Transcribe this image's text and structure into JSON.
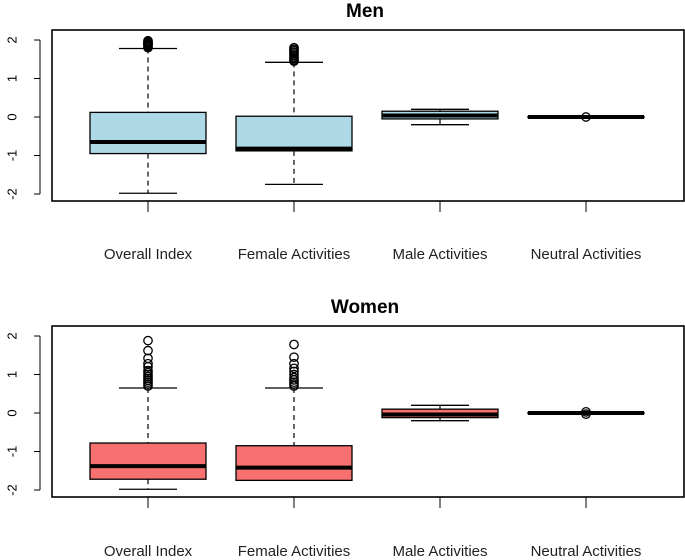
{
  "chart_data": [
    {
      "type": "boxplot",
      "title": "Men",
      "categories": [
        "Overall Index",
        "Female Activities",
        "Male Activities",
        "Neutral Activities"
      ],
      "y_ticks": [
        -2,
        -1,
        0,
        1,
        2
      ],
      "ylim": [
        -2.15,
        2.15
      ],
      "grid": false,
      "box_color": "#add8e6",
      "boxes": [
        {
          "whisker_low": -1.98,
          "q1": -0.95,
          "median": -0.65,
          "q3": 0.12,
          "whisker_high": 1.78,
          "outliers": [
            1.8,
            1.83,
            1.86,
            1.88,
            1.9,
            1.92,
            1.94,
            1.96,
            1.98
          ]
        },
        {
          "whisker_low": -1.75,
          "q1": -0.88,
          "median": -0.82,
          "q3": 0.02,
          "whisker_high": 1.42,
          "outliers": [
            1.45,
            1.48,
            1.52,
            1.56,
            1.6,
            1.64,
            1.68,
            1.72,
            1.76,
            1.8
          ]
        },
        {
          "whisker_low": -0.2,
          "q1": -0.05,
          "median": 0.04,
          "q3": 0.15,
          "whisker_high": 0.2,
          "outliers": []
        },
        {
          "whisker_low": -0.01,
          "q1": -0.01,
          "median": 0.0,
          "q3": 0.01,
          "whisker_high": 0.01,
          "outliers": [
            0.0
          ]
        }
      ]
    },
    {
      "type": "boxplot",
      "title": "Women",
      "categories": [
        "Overall Index",
        "Female Activities",
        "Male Activities",
        "Neutral Activities"
      ],
      "y_ticks": [
        -2,
        -1,
        0,
        1,
        2
      ],
      "ylim": [
        -2.15,
        2.15
      ],
      "grid": false,
      "box_color": "#f87171",
      "boxes": [
        {
          "whisker_low": -1.98,
          "q1": -1.72,
          "median": -1.38,
          "q3": -0.78,
          "whisker_high": 0.65,
          "outliers": [
            0.7,
            0.75,
            0.8,
            0.85,
            0.9,
            0.95,
            1.0,
            1.05,
            1.1,
            1.2,
            1.28,
            1.42,
            1.62,
            1.88
          ]
        },
        {
          "whisker_low": -1.75,
          "q1": -1.75,
          "median": -1.42,
          "q3": -0.85,
          "whisker_high": 0.65,
          "outliers": [
            0.7,
            0.75,
            0.8,
            0.86,
            0.92,
            1.0,
            1.08,
            1.16,
            1.28,
            1.45,
            1.78
          ]
        },
        {
          "whisker_low": -0.2,
          "q1": -0.12,
          "median": -0.04,
          "q3": 0.1,
          "whisker_high": 0.2,
          "outliers": []
        },
        {
          "whisker_low": -0.01,
          "q1": -0.01,
          "median": 0.0,
          "q3": 0.01,
          "whisker_high": 0.01,
          "outliers": [
            -0.03,
            0.03
          ]
        }
      ]
    }
  ]
}
